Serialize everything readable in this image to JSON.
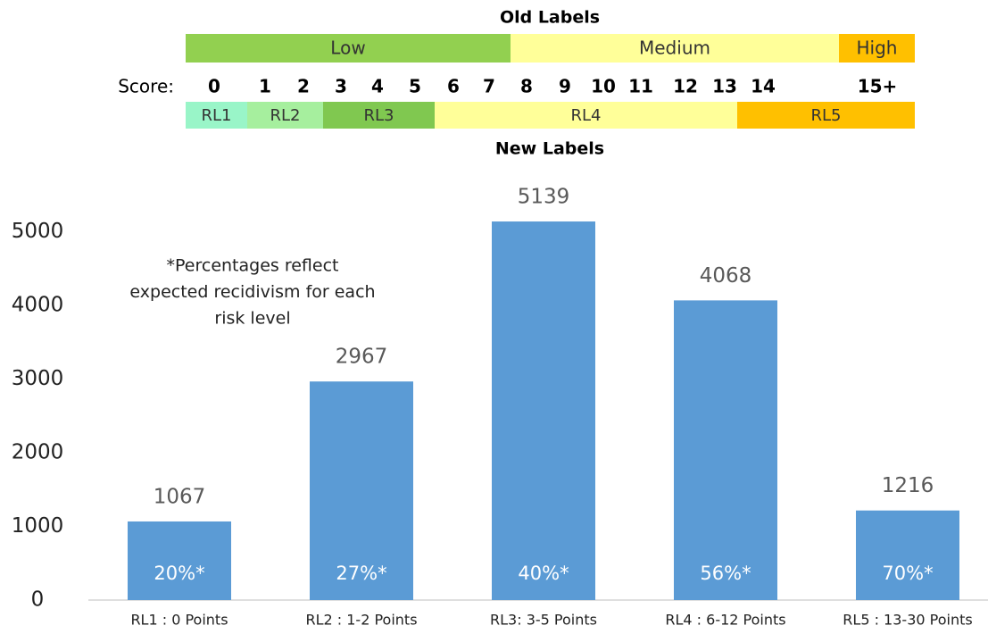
{
  "header": {
    "old_labels": {
      "title": "Old Labels",
      "segments": [
        {
          "label": "Low",
          "color": "#92d050"
        },
        {
          "label": "Medium",
          "color": "#ffff99"
        },
        {
          "label": "High",
          "color": "#ffc000"
        }
      ]
    },
    "score_label": "Score:",
    "scores": [
      "0",
      "1",
      "2",
      "3",
      "4",
      "5",
      "6",
      "7",
      "8",
      "9",
      "10",
      "11",
      "12",
      "13",
      "14",
      "15+"
    ],
    "new_labels": {
      "title": "New Labels",
      "segments": [
        {
          "label": "RL1",
          "color": "#99f5c8"
        },
        {
          "label": "RL2",
          "color": "#a6ef9e"
        },
        {
          "label": "RL3",
          "color": "#80c850"
        },
        {
          "label": "RL4",
          "color": "#ffff99"
        },
        {
          "label": "RL5",
          "color": "#ffc000"
        }
      ]
    }
  },
  "chart_data": {
    "type": "bar",
    "categories": [
      "RL1 : 0 Points",
      "RL2 : 1-2 Points",
      "RL3: 3-5 Points",
      "RL4 : 6-12 Points",
      "RL5 : 13-30 Points"
    ],
    "values": [
      1067,
      2967,
      5139,
      4068,
      1216
    ],
    "bar_notes": [
      "20%*",
      "27%*",
      "40%*",
      "56%*",
      "70%*"
    ],
    "color": "#5b9bd5",
    "ylim": [
      0,
      5600
    ],
    "yticks": [
      0,
      1000,
      2000,
      3000,
      4000,
      5000
    ],
    "grid": false,
    "annotation": [
      "*Percentages reflect",
      "expected recidivism for each",
      "risk level"
    ]
  }
}
